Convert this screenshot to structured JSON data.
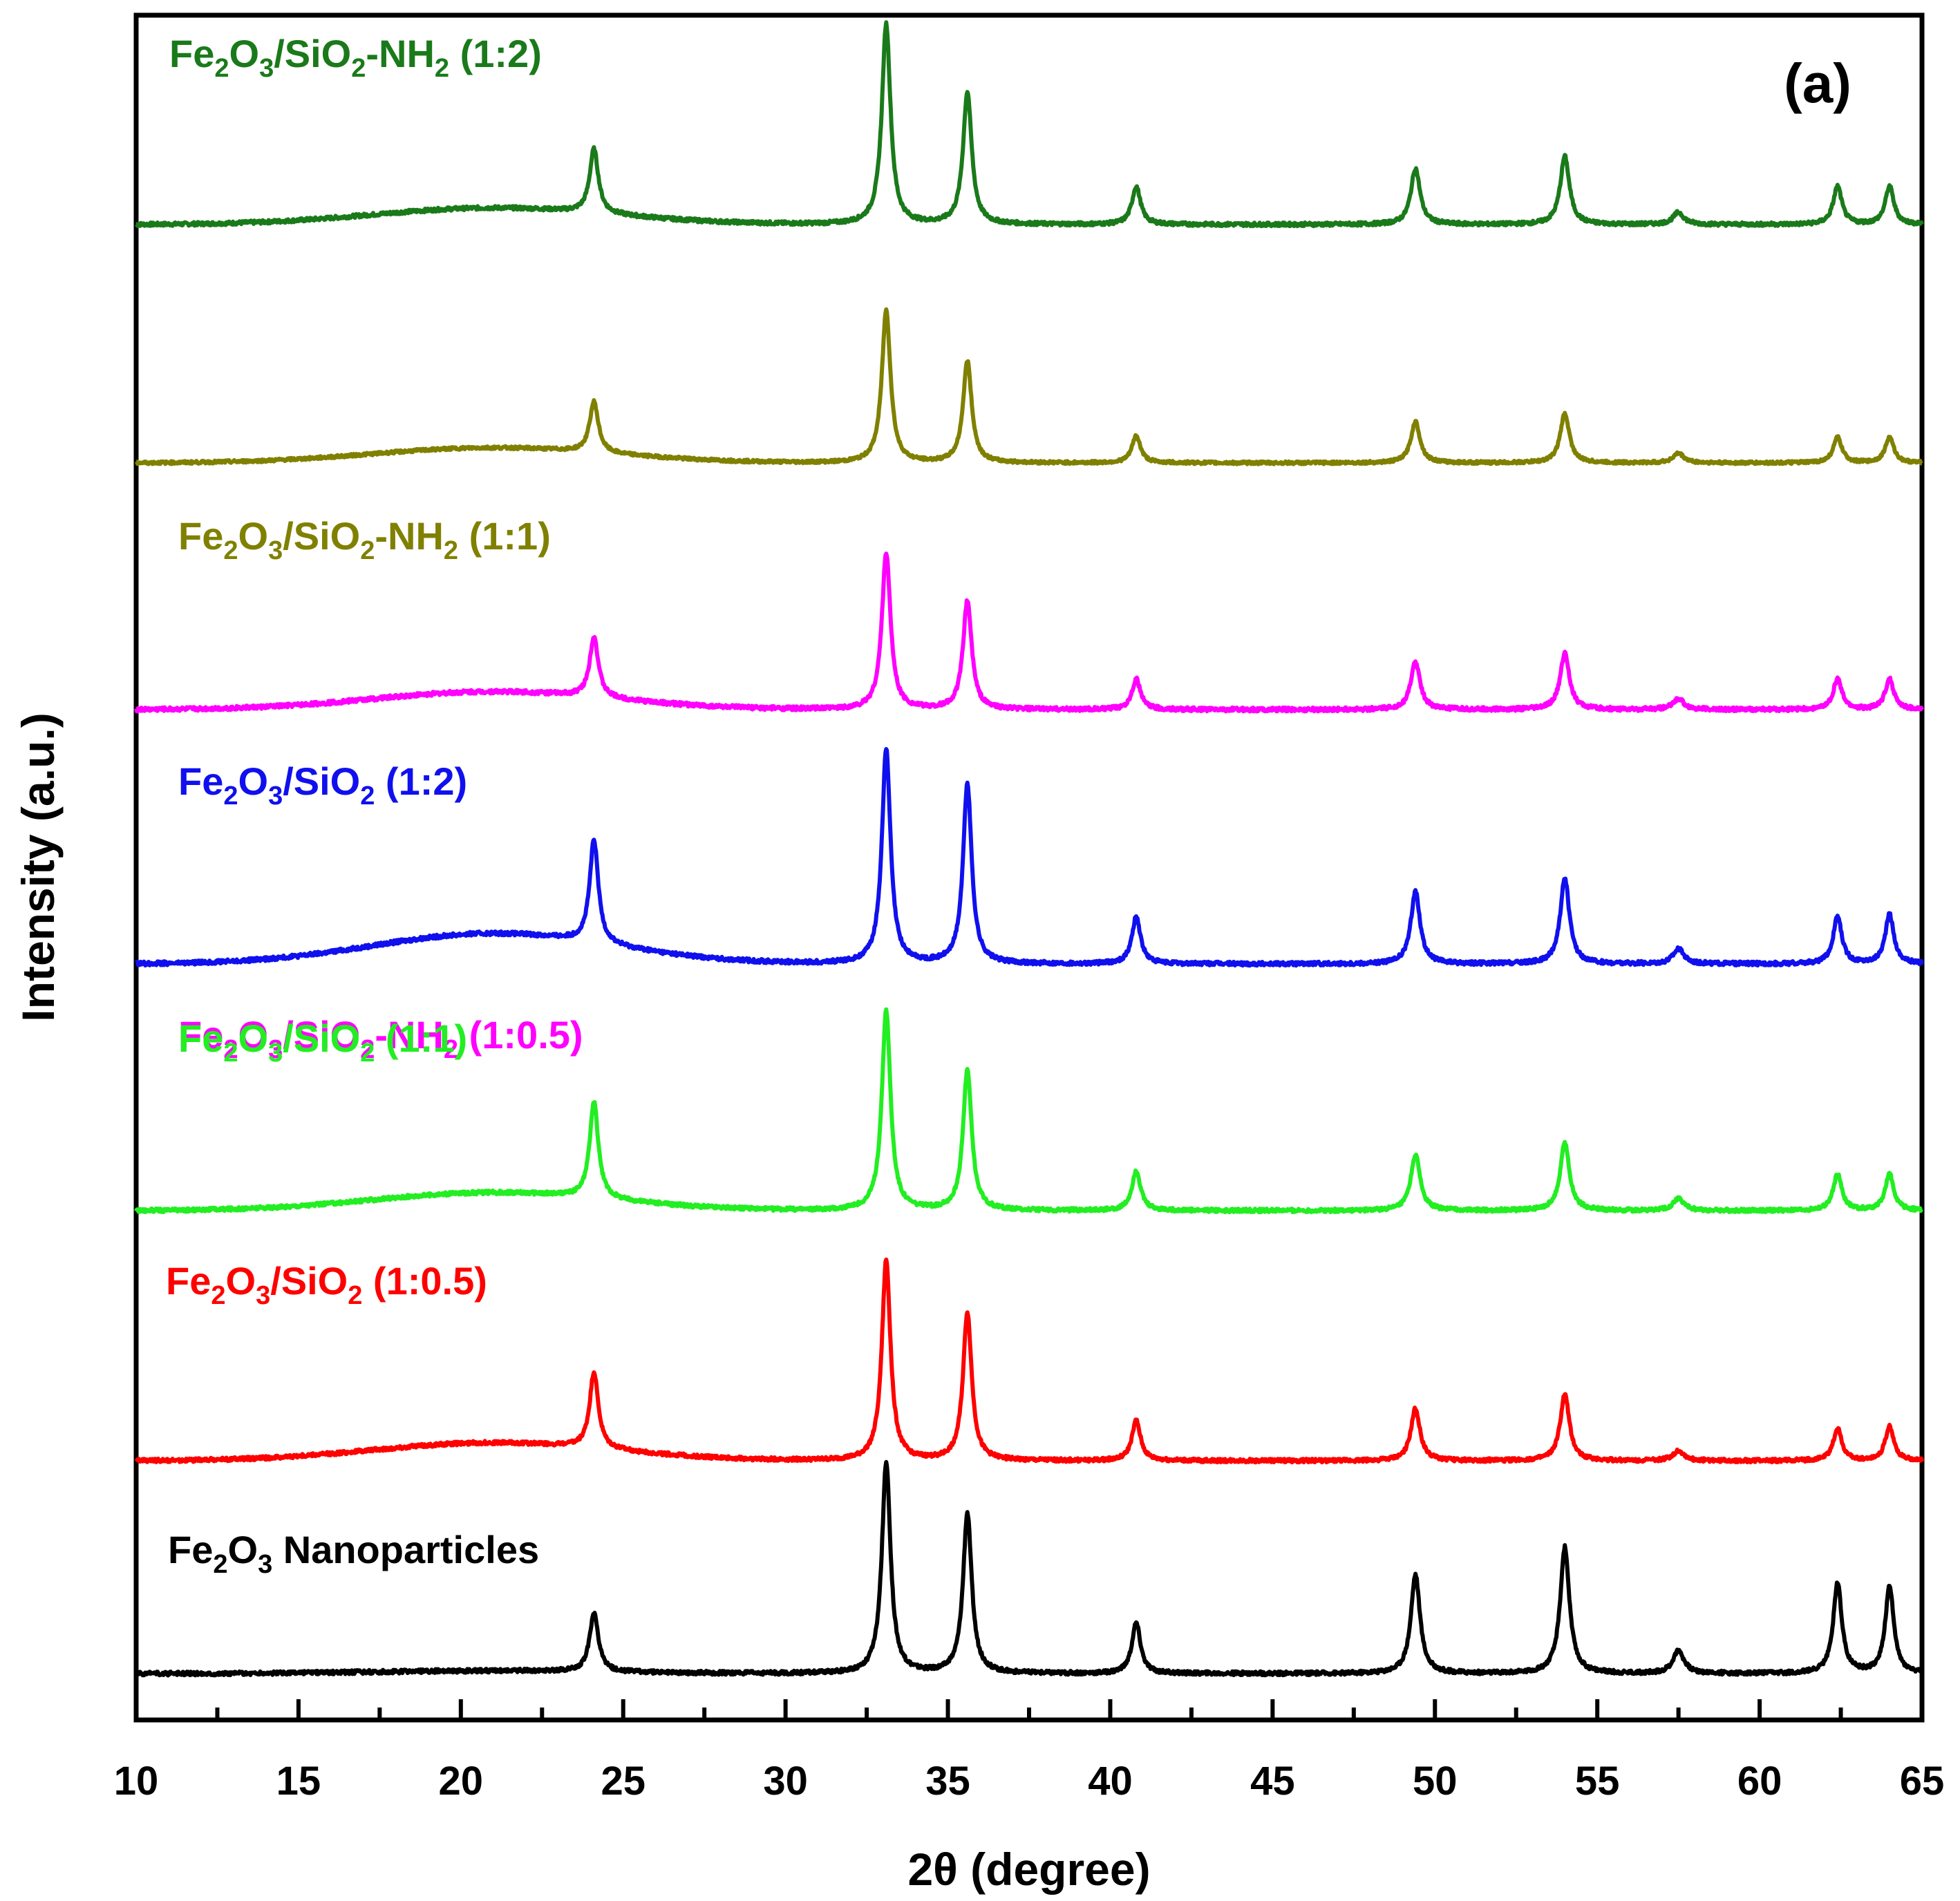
{
  "chart_data": {
    "type": "line",
    "title": "",
    "panel_label": "(a)",
    "xlabel": "2θ (degree)",
    "ylabel": "Intensity (a.u.)",
    "xlim": [
      10,
      65
    ],
    "x_ticks": [
      10,
      15,
      20,
      25,
      30,
      35,
      40,
      45,
      50,
      55,
      60,
      65
    ],
    "x_tick_labels": [
      "10",
      "15",
      "20",
      "25",
      "30",
      "35",
      "40",
      "45",
      "50",
      "55",
      "60",
      "65"
    ],
    "y_ticks_shown": false,
    "grid": false,
    "peak_positions_2theta": [
      24.1,
      33.1,
      35.6,
      40.8,
      49.4,
      54.0,
      57.5,
      62.4,
      64.0
    ],
    "series": [
      {
        "name": "Fe2O3/SiO2-NH2 (1:2)",
        "label": {
          "base1": "Fe",
          "sub1": "2",
          "base2": "O",
          "sub2": "3",
          "rest": "/SiO",
          "sub3": "2",
          "rest2": "-NH",
          "sub4": "2",
          "tail": " (1:2)"
        },
        "color": "#1a7a1a",
        "offset": 6,
        "baseline": 0.0,
        "hump": 0.12,
        "peak_heights": [
          0.32,
          1.0,
          0.66,
          0.19,
          0.28,
          0.34,
          0.06,
          0.19,
          0.19
        ]
      },
      {
        "name": "Fe2O3/SiO2-NH2 (1:1)",
        "label": {
          "base1": "Fe",
          "sub1": "2",
          "base2": "O",
          "sub2": "3",
          "rest": "/SiO",
          "sub3": "2",
          "rest2": "-NH",
          "sub4": "2",
          "tail": " (1:1)"
        },
        "color": "#808000",
        "offset": 5,
        "baseline": 0.0,
        "hump": 0.11,
        "peak_heights": [
          0.32,
          0.96,
          0.64,
          0.17,
          0.26,
          0.31,
          0.06,
          0.16,
          0.16
        ]
      },
      {
        "name": "Fe2O3/SiO2-NH2 (1:0.5)",
        "label": {
          "base1": "Fe",
          "sub1": "2",
          "base2": "O",
          "sub2": "3",
          "rest": "/SiO",
          "sub3": "2",
          "rest2": "-NH",
          "sub4": "2",
          "tail": " (1:0.5)"
        },
        "color": "#ff00ff",
        "offset": 4,
        "baseline": 0.0,
        "hump": 0.13,
        "peak_heights": [
          0.28,
          0.72,
          0.5,
          0.14,
          0.22,
          0.26,
          0.05,
          0.14,
          0.14
        ]
      },
      {
        "name": "Fe2O3/SiO2 (1:2)",
        "label": {
          "base1": "Fe",
          "sub1": "2",
          "base2": "O",
          "sub2": "3",
          "rest": "/SiO",
          "sub3": "2",
          "rest2": "",
          "sub4": "",
          "tail": " (1:2)"
        },
        "color": "#1010ee",
        "offset": 3,
        "baseline": 0.0,
        "hump": 0.22,
        "peak_heights": [
          0.48,
          1.0,
          0.84,
          0.22,
          0.34,
          0.4,
          0.07,
          0.22,
          0.23
        ]
      },
      {
        "name": "Fe2O3/SiO2 (1:1)",
        "label": {
          "base1": "Fe",
          "sub1": "2",
          "base2": "O",
          "sub2": "3",
          "rest": "/SiO",
          "sub3": "2",
          "rest2": "",
          "sub4": "",
          "tail": " (1:1)"
        },
        "color": "#22ee22",
        "offset": 2,
        "baseline": 0.0,
        "hump": 0.13,
        "peak_heights": [
          0.48,
          1.0,
          0.7,
          0.2,
          0.28,
          0.34,
          0.06,
          0.18,
          0.18
        ]
      },
      {
        "name": "Fe2O3/SiO2 (1:0.5)",
        "label": {
          "base1": "Fe",
          "sub1": "2",
          "base2": "O",
          "sub2": "3",
          "rest": "/SiO",
          "sub3": "2",
          "rest2": "",
          "sub4": "",
          "tail": " (1:0.5)"
        },
        "color": "#ff0000",
        "offset": 1,
        "baseline": 0.0,
        "hump": 0.13,
        "peak_heights": [
          0.38,
          1.0,
          0.74,
          0.2,
          0.26,
          0.33,
          0.05,
          0.16,
          0.17
        ]
      },
      {
        "name": "Fe2O3 Nanoparticles",
        "label": {
          "base1": "Fe",
          "sub1": "2",
          "base2": "O",
          "sub2": "3",
          "rest": " Nanoparticles",
          "sub3": "",
          "rest2": "",
          "sub4": "",
          "tail": ""
        },
        "color": "#000000",
        "offset": 0,
        "baseline": 0.0,
        "hump": 0.02,
        "peak_heights": [
          0.28,
          1.0,
          0.76,
          0.24,
          0.47,
          0.6,
          0.11,
          0.43,
          0.41
        ]
      }
    ]
  }
}
